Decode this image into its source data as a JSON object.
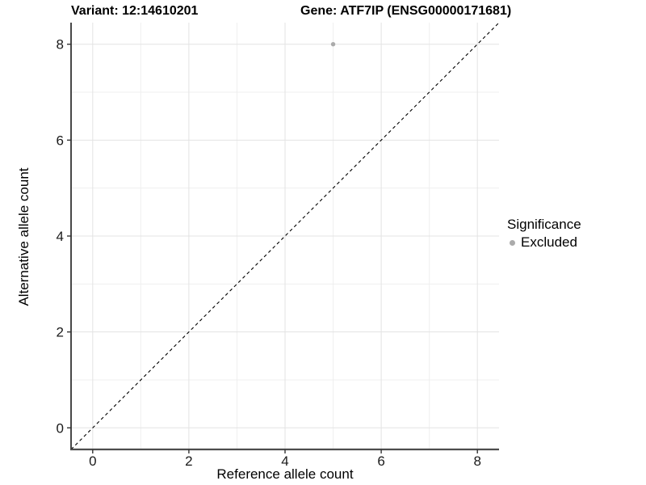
{
  "header": {
    "variant_title": "Variant: 12:14610201",
    "gene_title": "Gene: ATF7IP (ENSG00000171681)"
  },
  "axes": {
    "x_label": "Reference allele count",
    "y_label": "Alternative allele count"
  },
  "legend": {
    "title": "Significance",
    "items": [
      {
        "label": "Excluded",
        "color": "#ababab"
      }
    ]
  },
  "colors": {
    "background": "#ffffff",
    "grid_major": "#e3e3e3",
    "grid_minor": "#efefef",
    "axis_line": "#3c3c3c",
    "tick_mark": "#333333",
    "tick_label": "#1a1a1a",
    "identity_line": "#000000",
    "point": "#ababab"
  },
  "chart_data": {
    "type": "scatter",
    "title": "Variant: 12:14610201  |  Gene: ATF7IP (ENSG00000171681)",
    "xlabel": "Reference allele count",
    "ylabel": "Alternative allele count",
    "xlim": [
      -0.45,
      8.45
    ],
    "ylim": [
      -0.45,
      8.45
    ],
    "x_ticks": [
      0,
      2,
      4,
      6,
      8
    ],
    "y_ticks": [
      0,
      2,
      4,
      6,
      8
    ],
    "x_minor_breaks": [
      1,
      3,
      5,
      7
    ],
    "y_minor_breaks": [
      1,
      3,
      5,
      7
    ],
    "grid": "on",
    "legend_position": "right",
    "series": [
      {
        "name": "Excluded",
        "color": "#ababab",
        "points": [
          {
            "x": 5,
            "y": 8
          }
        ]
      }
    ],
    "reference_line": {
      "type": "identity y=x",
      "style": "dashed",
      "color": "#000000"
    }
  }
}
